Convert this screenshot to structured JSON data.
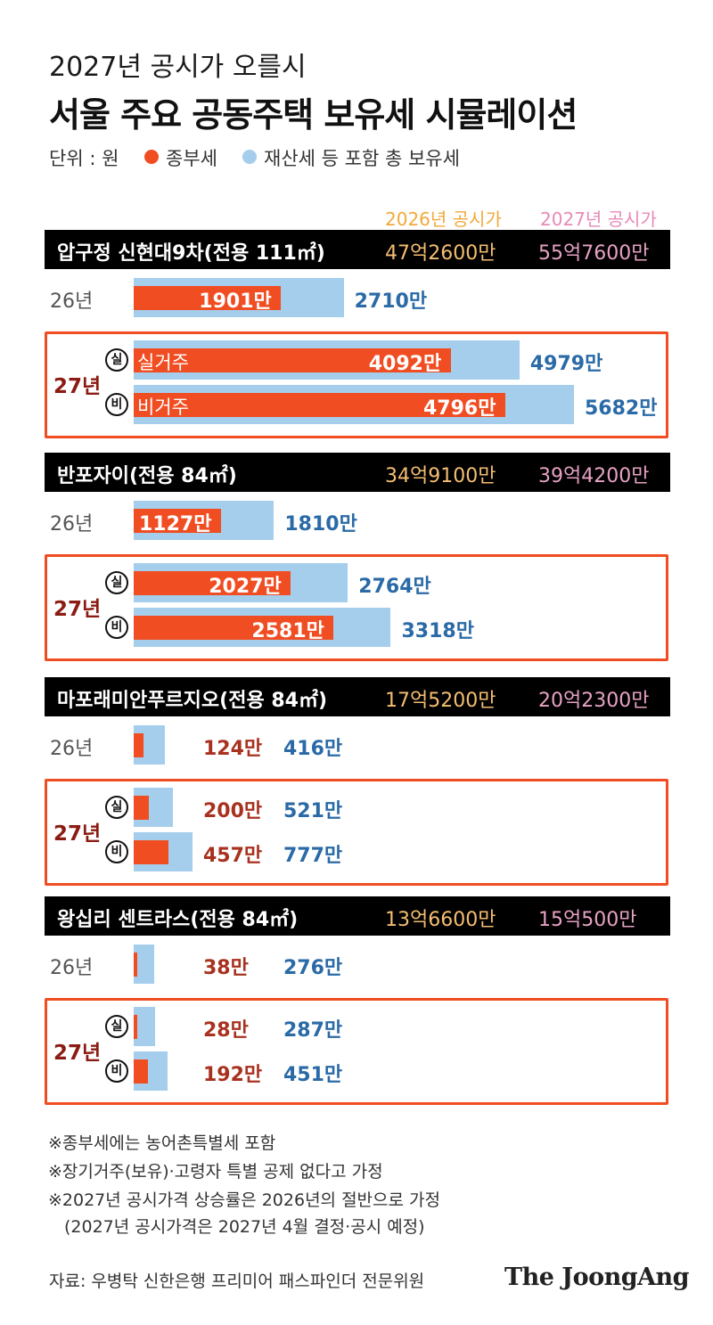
{
  "header": {
    "subtitle": "2027년 공시가 오를시",
    "title": "서울 주요 공동주택 보유세 시뮬레이션",
    "unit_label": "단위 : 원",
    "legend": [
      {
        "label": "종부세",
        "color": "#f04d22"
      },
      {
        "label": "재산세 등 포함 총 보유세",
        "color": "#a5cdec"
      }
    ],
    "col_2026": "2026년 공시가",
    "col_2027": "2027년 공시가"
  },
  "chart_data": {
    "type": "bar",
    "unit": "원",
    "series_names": [
      "종부세",
      "재산세 등 포함 총 보유세"
    ],
    "max_value_manwon": 5682,
    "properties": [
      {
        "name": "압구정 신현대9차(전용 111㎡)",
        "price_2026": "47억2600만",
        "price_2027": "55억7600만",
        "rows": [
          {
            "year": "26년",
            "tag": "",
            "comp": 1901,
            "total": 2710,
            "comp_label": "1901만",
            "total_label": "2710만"
          },
          {
            "year": "27년",
            "circle": "실",
            "tag": "실거주",
            "comp": 4092,
            "total": 4979,
            "comp_label": "4092만",
            "total_label": "4979만"
          },
          {
            "year": "27년",
            "circle": "비",
            "tag": "비거주",
            "comp": 4796,
            "total": 5682,
            "comp_label": "4796만",
            "total_label": "5682만"
          }
        ]
      },
      {
        "name": "반포자이(전용 84㎡)",
        "price_2026": "34억9100만",
        "price_2027": "39억4200만",
        "rows": [
          {
            "year": "26년",
            "tag": "",
            "comp": 1127,
            "total": 1810,
            "comp_label": "1127만",
            "total_label": "1810만"
          },
          {
            "year": "27년",
            "circle": "실",
            "tag": "",
            "comp": 2027,
            "total": 2764,
            "comp_label": "2027만",
            "total_label": "2764만"
          },
          {
            "year": "27년",
            "circle": "비",
            "tag": "",
            "comp": 2581,
            "total": 3318,
            "comp_label": "2581만",
            "total_label": "3318만"
          }
        ]
      },
      {
        "name": "마포래미안푸르지오(전용 84㎡)",
        "price_2026": "17억5200만",
        "price_2027": "20억2300만",
        "rows": [
          {
            "year": "26년",
            "tag": "",
            "comp": 124,
            "total": 416,
            "comp_label": "124만",
            "total_label": "416만"
          },
          {
            "year": "27년",
            "circle": "실",
            "tag": "",
            "comp": 200,
            "total": 521,
            "comp_label": "200만",
            "total_label": "521만"
          },
          {
            "year": "27년",
            "circle": "비",
            "tag": "",
            "comp": 457,
            "total": 777,
            "comp_label": "457만",
            "total_label": "777만"
          }
        ]
      },
      {
        "name": "왕십리 센트라스(전용 84㎡)",
        "price_2026": "13억6600만",
        "price_2027": "15억500만",
        "rows": [
          {
            "year": "26년",
            "tag": "",
            "comp": 38,
            "total": 276,
            "comp_label": "38만",
            "total_label": "276만"
          },
          {
            "year": "27년",
            "circle": "실",
            "tag": "",
            "comp": 28,
            "total": 287,
            "comp_label": "28만",
            "total_label": "287만"
          },
          {
            "year": "27년",
            "circle": "비",
            "tag": "",
            "comp": 192,
            "total": 451,
            "comp_label": "192만",
            "total_label": "451만"
          }
        ]
      }
    ]
  },
  "notes": [
    "※종부세에는 농어촌특별세 포함",
    "※장기거주(보유)·고령자 특별 공제 없다고 가정",
    "※2027년 공시가격 상승률은 2026년의 절반으로 가정",
    "(2027년 공시가격은 2027년 4월 결정·공시 예정)"
  ],
  "footer": {
    "source": "자료: 우병탁 신한은행 프리미어 패스파인더 전문위원",
    "brand": "The JoongAng"
  }
}
